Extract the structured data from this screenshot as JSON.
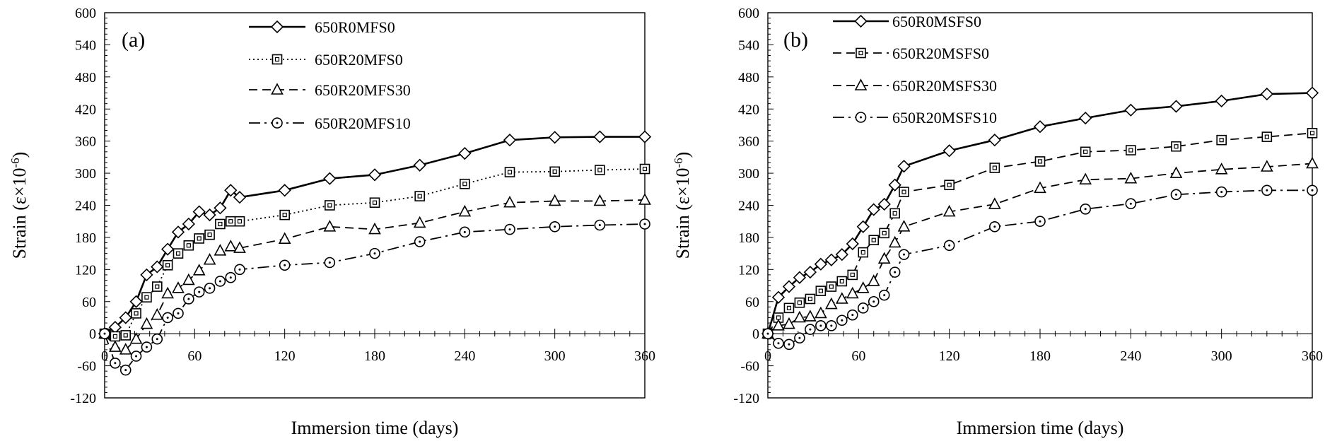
{
  "chart_data": [
    {
      "type": "line",
      "panel": "(a)",
      "xlabel": "Immersion time (days)",
      "ylabel": "Strain (ε×10",
      "ylabel_exp": "-6",
      "ylabel_close": ")",
      "xlim": [
        0,
        360
      ],
      "ylim": [
        -120,
        600
      ],
      "xticks": [
        0,
        60,
        120,
        180,
        240,
        300,
        360
      ],
      "yticks": [
        -120,
        -60,
        0,
        60,
        120,
        180,
        240,
        300,
        360,
        420,
        480,
        540,
        600
      ],
      "legend_position": "top-center",
      "series": [
        {
          "name": "650R0MFS0",
          "marker": "diamond",
          "dash": "solid",
          "x": [
            0,
            7,
            14,
            21,
            28,
            35,
            42,
            49,
            56,
            63,
            70,
            77,
            84,
            90,
            120,
            150,
            180,
            210,
            240,
            270,
            300,
            330,
            360
          ],
          "y": [
            0,
            12,
            30,
            60,
            110,
            125,
            158,
            190,
            205,
            228,
            222,
            235,
            268,
            255,
            268,
            290,
            297,
            315,
            337,
            362,
            367,
            368,
            368
          ]
        },
        {
          "name": "650R20MFS0",
          "marker": "square",
          "dash": "dotted",
          "x": [
            0,
            7,
            14,
            21,
            28,
            35,
            42,
            49,
            56,
            63,
            70,
            77,
            84,
            90,
            120,
            150,
            180,
            210,
            240,
            270,
            300,
            330,
            360
          ],
          "y": [
            0,
            -5,
            -3,
            38,
            68,
            88,
            128,
            150,
            165,
            178,
            185,
            205,
            210,
            210,
            222,
            240,
            245,
            257,
            280,
            302,
            303,
            306,
            308
          ]
        },
        {
          "name": "650R20MFS30",
          "marker": "triangle",
          "dash": "dashed",
          "x": [
            0,
            7,
            14,
            21,
            28,
            35,
            42,
            49,
            56,
            63,
            70,
            77,
            84,
            90,
            120,
            150,
            180,
            210,
            240,
            270,
            300,
            330,
            360
          ],
          "y": [
            0,
            -25,
            -30,
            -10,
            18,
            35,
            75,
            85,
            100,
            118,
            138,
            155,
            163,
            160,
            177,
            200,
            195,
            207,
            228,
            245,
            248,
            248,
            250
          ]
        },
        {
          "name": "650R20MFS10",
          "marker": "circle",
          "dash": "dashdot",
          "x": [
            0,
            7,
            14,
            21,
            28,
            35,
            42,
            49,
            56,
            63,
            70,
            77,
            84,
            90,
            120,
            150,
            180,
            210,
            240,
            270,
            300,
            330,
            360
          ],
          "y": [
            0,
            -55,
            -68,
            -42,
            -25,
            -10,
            30,
            38,
            65,
            78,
            85,
            98,
            105,
            120,
            128,
            133,
            150,
            172,
            190,
            195,
            200,
            203,
            205
          ]
        }
      ]
    },
    {
      "type": "line",
      "panel": "(b)",
      "xlabel": "Immersion time (days)",
      "ylabel": "Strain (ε×10",
      "ylabel_exp": "-6",
      "ylabel_close": ")",
      "xlim": [
        0,
        360
      ],
      "ylim": [
        -120,
        600
      ],
      "xticks": [
        0,
        60,
        120,
        180,
        240,
        300,
        360
      ],
      "yticks": [
        -120,
        -60,
        0,
        60,
        120,
        180,
        240,
        300,
        360,
        420,
        480,
        540,
        600
      ],
      "legend_position": "top-left",
      "series": [
        {
          "name": "650R0MSFS0",
          "marker": "diamond",
          "dash": "solid",
          "x": [
            0,
            7,
            14,
            21,
            28,
            35,
            42,
            49,
            56,
            63,
            70,
            77,
            84,
            90,
            120,
            150,
            180,
            210,
            240,
            270,
            300,
            330,
            360
          ],
          "y": [
            0,
            68,
            88,
            105,
            115,
            130,
            138,
            148,
            168,
            200,
            232,
            242,
            278,
            313,
            342,
            362,
            387,
            403,
            418,
            425,
            435,
            448,
            450
          ]
        },
        {
          "name": "650R20MSFS0",
          "marker": "square",
          "dash": "dashed",
          "x": [
            0,
            7,
            14,
            21,
            28,
            35,
            42,
            49,
            56,
            63,
            70,
            77,
            84,
            90,
            120,
            150,
            180,
            210,
            240,
            270,
            300,
            330,
            360
          ],
          "y": [
            0,
            30,
            48,
            58,
            65,
            80,
            88,
            98,
            110,
            152,
            175,
            188,
            225,
            265,
            278,
            310,
            322,
            340,
            343,
            350,
            362,
            368,
            375
          ]
        },
        {
          "name": "650R20MSFS30",
          "marker": "triangle",
          "dash": "dashed",
          "x": [
            0,
            7,
            14,
            21,
            28,
            35,
            42,
            49,
            56,
            63,
            70,
            77,
            84,
            90,
            120,
            150,
            180,
            210,
            240,
            270,
            300,
            330,
            360
          ],
          "y": [
            0,
            15,
            18,
            30,
            32,
            38,
            55,
            65,
            75,
            85,
            98,
            140,
            170,
            200,
            228,
            242,
            272,
            288,
            290,
            300,
            307,
            312,
            318
          ]
        },
        {
          "name": "650R20MSFS10",
          "marker": "circle",
          "dash": "dashdot",
          "x": [
            0,
            7,
            14,
            21,
            28,
            35,
            42,
            49,
            56,
            63,
            70,
            77,
            84,
            90,
            120,
            150,
            180,
            210,
            240,
            270,
            300,
            330,
            360
          ],
          "y": [
            0,
            -18,
            -20,
            -8,
            8,
            15,
            15,
            25,
            35,
            48,
            60,
            72,
            115,
            148,
            165,
            200,
            210,
            233,
            243,
            260,
            265,
            268,
            268
          ]
        }
      ]
    }
  ]
}
